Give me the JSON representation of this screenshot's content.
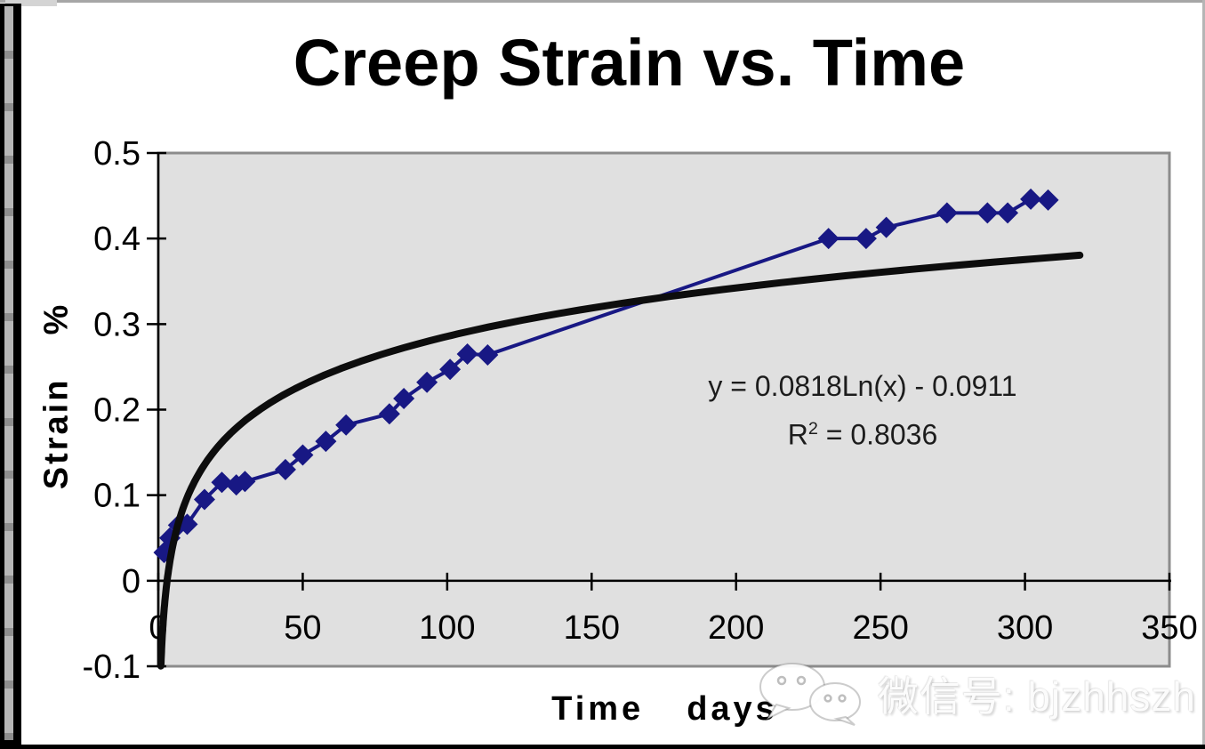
{
  "chart_data": {
    "type": "scatter",
    "title": "Creep Strain vs. Time",
    "xlabel_word1": "Time",
    "xlabel_word2": "days",
    "ylabel_word1": "Strain",
    "ylabel_word2": "%",
    "xlim": [
      0,
      350
    ],
    "ylim": [
      -0.1,
      0.5
    ],
    "x_ticks": [
      {
        "v": 0,
        "label": "0"
      },
      {
        "v": 50,
        "label": "50"
      },
      {
        "v": 100,
        "label": "100"
      },
      {
        "v": 150,
        "label": "150"
      },
      {
        "v": 200,
        "label": "200"
      },
      {
        "v": 250,
        "label": "250"
      },
      {
        "v": 300,
        "label": "300"
      },
      {
        "v": 350,
        "label": "350"
      }
    ],
    "y_ticks": [
      {
        "v": -0.1,
        "label": "-0.1"
      },
      {
        "v": 0,
        "label": "0"
      },
      {
        "v": 0.1,
        "label": "0.1"
      },
      {
        "v": 0.2,
        "label": "0.2"
      },
      {
        "v": 0.3,
        "label": "0.3"
      },
      {
        "v": 0.4,
        "label": "0.4"
      },
      {
        "v": 0.5,
        "label": "0.5"
      }
    ],
    "grid": false,
    "legend": "none",
    "series": [
      {
        "name": "creep-strain-measurements",
        "type": "line-with-diamond-markers",
        "color": "#181884",
        "marker": "diamond",
        "points": [
          [
            2,
            0.033
          ],
          [
            4,
            0.05
          ],
          [
            7,
            0.065
          ],
          [
            10,
            0.066
          ],
          [
            16,
            0.095
          ],
          [
            22,
            0.115
          ],
          [
            27,
            0.112
          ],
          [
            30,
            0.116
          ],
          [
            44,
            0.13
          ],
          [
            50,
            0.147
          ],
          [
            58,
            0.163
          ],
          [
            65,
            0.182
          ],
          [
            80,
            0.195
          ],
          [
            85,
            0.213
          ],
          [
            93,
            0.232
          ],
          [
            101,
            0.247
          ],
          [
            107,
            0.265
          ],
          [
            114,
            0.264
          ],
          [
            232,
            0.4
          ],
          [
            245,
            0.4
          ],
          [
            252,
            0.413
          ],
          [
            273,
            0.43
          ],
          [
            287,
            0.43
          ],
          [
            294,
            0.43
          ],
          [
            302,
            0.446
          ],
          [
            308,
            0.445
          ]
        ]
      },
      {
        "name": "logarithmic-trendline",
        "type": "log-fit-curve",
        "color": "#0d0d0d",
        "a": 0.0818,
        "b": -0.0911,
        "x_range": [
          0.9,
          319
        ]
      }
    ],
    "annotation": {
      "equation": "y = 0.0818Ln(x) - 0.0911",
      "r_prefix": "R",
      "r_sup": "2",
      "r_rest": " = 0.8036"
    },
    "colors": {
      "plot_bg": "#e0e0e0",
      "plot_border": "#8c8c8c",
      "axis": "#000000",
      "tick_label": "#000000",
      "series": "#181884",
      "trendline": "#0d0d0d"
    }
  },
  "watermark": {
    "label": "微信号: bjzhhszh",
    "icon": "wechat-icon"
  }
}
